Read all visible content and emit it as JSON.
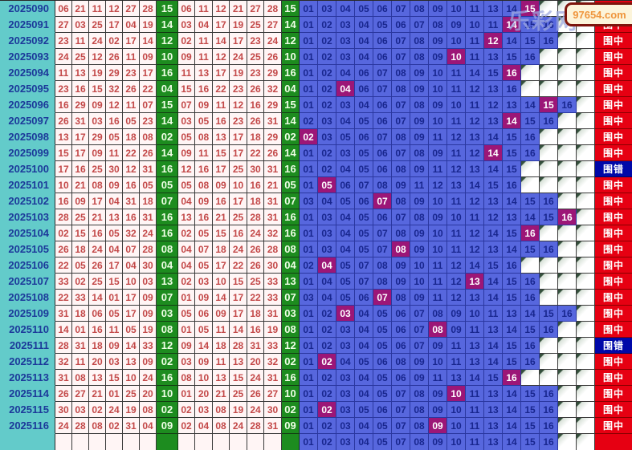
{
  "legend": {
    "hit_label": "围中",
    "miss_label": "围错"
  },
  "overlay": {
    "banner_text": "97654.com",
    "watermark_text": "乐彩网"
  },
  "colors": {
    "period_bg": "#63cbca",
    "draw_bg": "#fff5f5",
    "draw_text": "#c34848",
    "green_bg": "#1d8c1f",
    "blue_bg": "#5767de",
    "blue_text": "#18268e",
    "hit_bg": "#9c1677",
    "result_hit_bg": "#e60012",
    "result_miss_bg": "#0008a8"
  },
  "rows": [
    {
      "period": "2025090",
      "draw": [
        "06",
        "21",
        "11",
        "12",
        "27",
        "28"
      ],
      "blue": "15",
      "sorted": [
        "06",
        "11",
        "12",
        "21",
        "27",
        "28"
      ],
      "candidates": [
        "01",
        "03",
        "04",
        "05",
        "06",
        "07",
        "08",
        "09",
        "10",
        "11",
        "13",
        "14",
        "15"
      ],
      "hit": "15",
      "result": "围中"
    },
    {
      "period": "2025091",
      "draw": [
        "27",
        "03",
        "25",
        "17",
        "04",
        "19"
      ],
      "blue": "14",
      "sorted": [
        "03",
        "04",
        "17",
        "19",
        "25",
        "27"
      ],
      "candidates": [
        "01",
        "02",
        "03",
        "04",
        "05",
        "06",
        "07",
        "08",
        "09",
        "10",
        "11",
        "14",
        "15",
        "16"
      ],
      "hit": "14",
      "result": "围中"
    },
    {
      "period": "2025092",
      "draw": [
        "23",
        "11",
        "24",
        "02",
        "17",
        "14"
      ],
      "blue": "12",
      "sorted": [
        "02",
        "11",
        "14",
        "17",
        "23",
        "24"
      ],
      "candidates": [
        "01",
        "02",
        "03",
        "04",
        "06",
        "07",
        "08",
        "09",
        "10",
        "11",
        "12",
        "14",
        "15",
        "16"
      ],
      "hit": "12",
      "result": "围中"
    },
    {
      "period": "2025093",
      "draw": [
        "24",
        "25",
        "12",
        "26",
        "11",
        "09"
      ],
      "blue": "10",
      "sorted": [
        "09",
        "11",
        "12",
        "24",
        "25",
        "26"
      ],
      "candidates": [
        "01",
        "02",
        "03",
        "04",
        "06",
        "07",
        "08",
        "09",
        "10",
        "11",
        "13",
        "15",
        "16"
      ],
      "hit": "10",
      "result": "围中"
    },
    {
      "period": "2025094",
      "draw": [
        "11",
        "13",
        "19",
        "29",
        "23",
        "17"
      ],
      "blue": "16",
      "sorted": [
        "11",
        "13",
        "17",
        "19",
        "23",
        "29"
      ],
      "candidates": [
        "01",
        "02",
        "04",
        "06",
        "07",
        "08",
        "09",
        "10",
        "11",
        "14",
        "15",
        "16"
      ],
      "hit": "16",
      "result": "围中"
    },
    {
      "period": "2025095",
      "draw": [
        "23",
        "16",
        "15",
        "32",
        "26",
        "22"
      ],
      "blue": "04",
      "sorted": [
        "15",
        "16",
        "22",
        "23",
        "26",
        "32"
      ],
      "candidates": [
        "01",
        "02",
        "04",
        "06",
        "07",
        "08",
        "09",
        "10",
        "11",
        "12",
        "13",
        "16"
      ],
      "hit": "04",
      "result": "围中"
    },
    {
      "period": "2025096",
      "draw": [
        "16",
        "29",
        "09",
        "12",
        "11",
        "07"
      ],
      "blue": "15",
      "sorted": [
        "07",
        "09",
        "11",
        "12",
        "16",
        "29"
      ],
      "candidates": [
        "01",
        "02",
        "03",
        "04",
        "06",
        "07",
        "08",
        "09",
        "10",
        "11",
        "12",
        "13",
        "14",
        "15",
        "16"
      ],
      "hit": "15",
      "result": "围中"
    },
    {
      "period": "2025097",
      "draw": [
        "26",
        "31",
        "03",
        "16",
        "05",
        "23"
      ],
      "blue": "14",
      "sorted": [
        "03",
        "05",
        "16",
        "23",
        "26",
        "31"
      ],
      "candidates": [
        "02",
        "03",
        "04",
        "05",
        "06",
        "07",
        "09",
        "10",
        "11",
        "12",
        "13",
        "14",
        "15",
        "16"
      ],
      "hit": "14",
      "result": "围中"
    },
    {
      "period": "2025098",
      "draw": [
        "13",
        "17",
        "29",
        "05",
        "18",
        "08"
      ],
      "blue": "02",
      "sorted": [
        "05",
        "08",
        "13",
        "17",
        "18",
        "29"
      ],
      "candidates": [
        "02",
        "03",
        "05",
        "06",
        "07",
        "08",
        "09",
        "11",
        "12",
        "13",
        "14",
        "15",
        "16"
      ],
      "hit": "02",
      "result": "围中"
    },
    {
      "period": "2025099",
      "draw": [
        "15",
        "17",
        "09",
        "11",
        "22",
        "26"
      ],
      "blue": "14",
      "sorted": [
        "09",
        "11",
        "15",
        "17",
        "22",
        "26"
      ],
      "candidates": [
        "01",
        "02",
        "03",
        "05",
        "06",
        "07",
        "08",
        "09",
        "11",
        "12",
        "14",
        "15",
        "16"
      ],
      "hit": "14",
      "result": "围中"
    },
    {
      "period": "2025100",
      "draw": [
        "17",
        "16",
        "25",
        "30",
        "12",
        "31"
      ],
      "blue": "16",
      "sorted": [
        "12",
        "16",
        "17",
        "25",
        "30",
        "31"
      ],
      "candidates": [
        "01",
        "02",
        "04",
        "05",
        "06",
        "08",
        "09",
        "11",
        "12",
        "13",
        "14",
        "15"
      ],
      "hit": null,
      "result": "围错"
    },
    {
      "period": "2025101",
      "draw": [
        "10",
        "21",
        "08",
        "09",
        "16",
        "05"
      ],
      "blue": "05",
      "sorted": [
        "05",
        "08",
        "09",
        "10",
        "16",
        "21"
      ],
      "candidates": [
        "01",
        "05",
        "06",
        "07",
        "08",
        "09",
        "11",
        "12",
        "13",
        "14",
        "15",
        "16"
      ],
      "hit": "05",
      "result": "围中"
    },
    {
      "period": "2025102",
      "draw": [
        "16",
        "09",
        "17",
        "04",
        "31",
        "18"
      ],
      "blue": "07",
      "sorted": [
        "04",
        "09",
        "16",
        "17",
        "18",
        "31"
      ],
      "candidates": [
        "03",
        "04",
        "05",
        "06",
        "07",
        "08",
        "09",
        "10",
        "11",
        "12",
        "13",
        "14",
        "15",
        "16"
      ],
      "hit": "07",
      "result": "围中"
    },
    {
      "period": "2025103",
      "draw": [
        "28",
        "25",
        "21",
        "13",
        "16",
        "31"
      ],
      "blue": "16",
      "sorted": [
        "13",
        "16",
        "21",
        "25",
        "28",
        "31"
      ],
      "candidates": [
        "01",
        "03",
        "04",
        "05",
        "06",
        "07",
        "08",
        "09",
        "10",
        "11",
        "12",
        "13",
        "14",
        "15",
        "16"
      ],
      "hit": "16",
      "result": "围中"
    },
    {
      "period": "2025104",
      "draw": [
        "02",
        "15",
        "16",
        "05",
        "32",
        "24"
      ],
      "blue": "16",
      "sorted": [
        "02",
        "05",
        "15",
        "16",
        "24",
        "32"
      ],
      "candidates": [
        "01",
        "03",
        "04",
        "05",
        "07",
        "08",
        "09",
        "10",
        "11",
        "12",
        "14",
        "15",
        "16"
      ],
      "hit": "16",
      "result": "围中"
    },
    {
      "period": "2025105",
      "draw": [
        "26",
        "18",
        "24",
        "04",
        "07",
        "28"
      ],
      "blue": "08",
      "sorted": [
        "04",
        "07",
        "18",
        "24",
        "26",
        "28"
      ],
      "candidates": [
        "01",
        "03",
        "04",
        "05",
        "07",
        "08",
        "09",
        "10",
        "11",
        "12",
        "13",
        "14",
        "15",
        "16"
      ],
      "hit": "08",
      "result": "围中"
    },
    {
      "period": "2025106",
      "draw": [
        "22",
        "05",
        "26",
        "17",
        "04",
        "30"
      ],
      "blue": "04",
      "sorted": [
        "04",
        "05",
        "17",
        "22",
        "26",
        "30"
      ],
      "candidates": [
        "02",
        "04",
        "05",
        "07",
        "08",
        "09",
        "10",
        "11",
        "12",
        "14",
        "15",
        "16"
      ],
      "hit": "04",
      "result": "围中"
    },
    {
      "period": "2025107",
      "draw": [
        "33",
        "02",
        "25",
        "15",
        "10",
        "03"
      ],
      "blue": "13",
      "sorted": [
        "02",
        "03",
        "10",
        "15",
        "25",
        "33"
      ],
      "candidates": [
        "01",
        "04",
        "05",
        "07",
        "08",
        "09",
        "10",
        "11",
        "12",
        "13",
        "14",
        "15",
        "16"
      ],
      "hit": "13",
      "result": "围中"
    },
    {
      "period": "2025108",
      "draw": [
        "22",
        "33",
        "14",
        "01",
        "17",
        "09"
      ],
      "blue": "07",
      "sorted": [
        "01",
        "09",
        "14",
        "17",
        "22",
        "33"
      ],
      "candidates": [
        "03",
        "04",
        "05",
        "06",
        "07",
        "08",
        "09",
        "11",
        "12",
        "13",
        "14",
        "15",
        "16"
      ],
      "hit": "07",
      "result": "围中"
    },
    {
      "period": "2025109",
      "draw": [
        "31",
        "18",
        "06",
        "05",
        "17",
        "09"
      ],
      "blue": "03",
      "sorted": [
        "05",
        "06",
        "09",
        "17",
        "18",
        "31"
      ],
      "candidates": [
        "01",
        "02",
        "03",
        "04",
        "05",
        "06",
        "07",
        "08",
        "09",
        "10",
        "11",
        "13",
        "14",
        "15",
        "16"
      ],
      "hit": "03",
      "result": "围中"
    },
    {
      "period": "2025110",
      "draw": [
        "14",
        "01",
        "16",
        "11",
        "05",
        "19"
      ],
      "blue": "08",
      "sorted": [
        "01",
        "05",
        "11",
        "14",
        "16",
        "19"
      ],
      "candidates": [
        "01",
        "02",
        "03",
        "04",
        "05",
        "06",
        "07",
        "08",
        "09",
        "11",
        "13",
        "14",
        "15",
        "16"
      ],
      "hit": "08",
      "result": "围中"
    },
    {
      "period": "2025111",
      "draw": [
        "28",
        "31",
        "18",
        "09",
        "14",
        "33"
      ],
      "blue": "12",
      "sorted": [
        "09",
        "14",
        "18",
        "28",
        "31",
        "33"
      ],
      "candidates": [
        "01",
        "02",
        "03",
        "04",
        "05",
        "06",
        "07",
        "09",
        "11",
        "13",
        "14",
        "15",
        "16"
      ],
      "hit": null,
      "result": "围错"
    },
    {
      "period": "2025112",
      "draw": [
        "32",
        "11",
        "20",
        "03",
        "13",
        "09"
      ],
      "blue": "02",
      "sorted": [
        "03",
        "09",
        "11",
        "13",
        "20",
        "32"
      ],
      "candidates": [
        "01",
        "02",
        "04",
        "05",
        "06",
        "08",
        "09",
        "10",
        "11",
        "13",
        "14",
        "15",
        "16"
      ],
      "hit": "02",
      "result": "围中"
    },
    {
      "period": "2025113",
      "draw": [
        "31",
        "08",
        "13",
        "15",
        "10",
        "24"
      ],
      "blue": "16",
      "sorted": [
        "08",
        "10",
        "13",
        "15",
        "24",
        "31"
      ],
      "candidates": [
        "01",
        "02",
        "03",
        "04",
        "05",
        "06",
        "09",
        "11",
        "13",
        "14",
        "15",
        "16"
      ],
      "hit": "16",
      "result": "围中"
    },
    {
      "period": "2025114",
      "draw": [
        "26",
        "27",
        "21",
        "01",
        "25",
        "20"
      ],
      "blue": "10",
      "sorted": [
        "01",
        "20",
        "21",
        "25",
        "26",
        "27"
      ],
      "candidates": [
        "01",
        "02",
        "03",
        "04",
        "05",
        "07",
        "08",
        "09",
        "10",
        "11",
        "13",
        "14",
        "15",
        "16"
      ],
      "hit": "10",
      "result": "围中"
    },
    {
      "period": "2025115",
      "draw": [
        "30",
        "03",
        "02",
        "24",
        "19",
        "08"
      ],
      "blue": "02",
      "sorted": [
        "02",
        "03",
        "08",
        "19",
        "24",
        "30"
      ],
      "candidates": [
        "01",
        "02",
        "03",
        "05",
        "06",
        "07",
        "08",
        "09",
        "10",
        "11",
        "13",
        "14",
        "15",
        "16"
      ],
      "hit": "02",
      "result": "围中"
    },
    {
      "period": "2025116",
      "draw": [
        "24",
        "28",
        "08",
        "02",
        "31",
        "04"
      ],
      "blue": "09",
      "sorted": [
        "02",
        "04",
        "08",
        "24",
        "28",
        "31"
      ],
      "candidates": [
        "01",
        "02",
        "03",
        "04",
        "05",
        "07",
        "08",
        "09",
        "10",
        "11",
        "13",
        "14",
        "15",
        "16"
      ],
      "hit": "09",
      "result": "围中"
    },
    {
      "period": "",
      "draw": [
        "",
        "",
        "",
        "",
        "",
        ""
      ],
      "blue": "",
      "sorted": [
        "",
        "",
        "",
        "",
        "",
        ""
      ],
      "candidates": [
        "01",
        "02",
        "03",
        "04",
        "05",
        "07",
        "08",
        "09",
        "10",
        "11",
        "13",
        "14",
        "15",
        "16"
      ],
      "hit": null,
      "result": ""
    }
  ]
}
